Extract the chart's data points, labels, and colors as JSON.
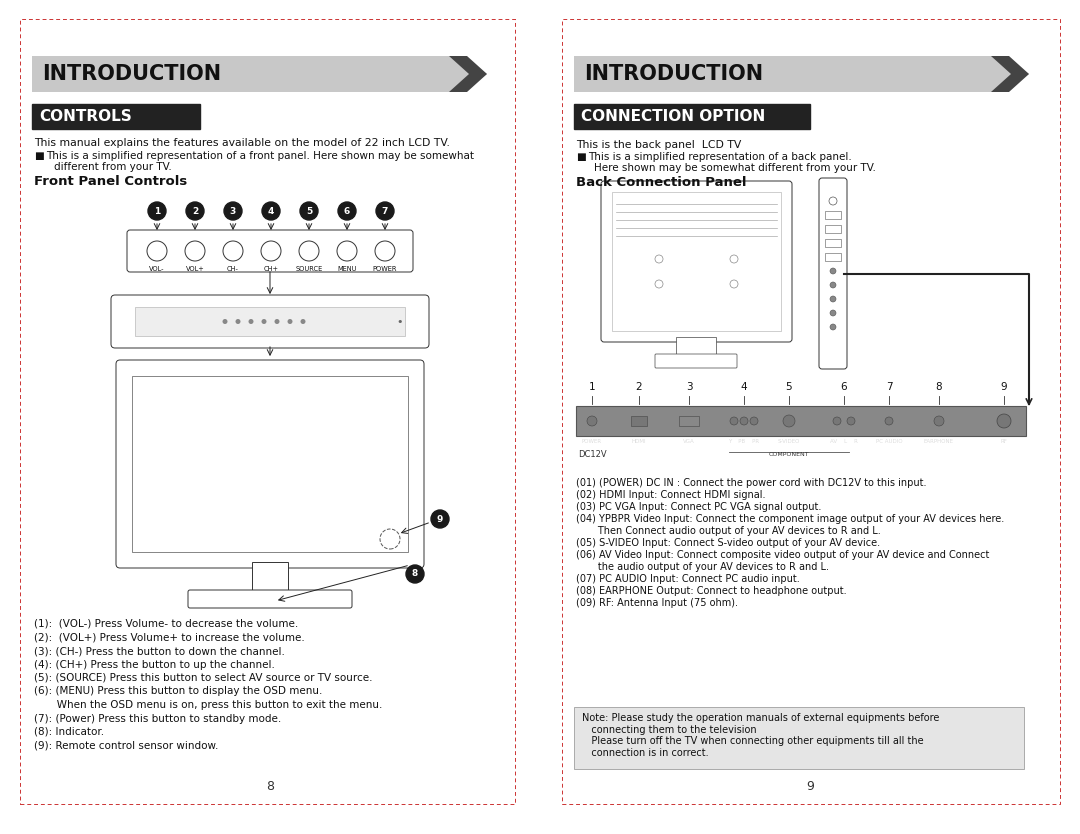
{
  "bg_color": "#ffffff",
  "left_page": {
    "intro_title": "INTRODUCTION",
    "section_title": "CONTROLS",
    "intro_text": "This manual explains the features available on the model of 22 inch LCD TV.",
    "bullet1": "This is a simplified representation of a front panel. Here shown may be somewhat",
    "bullet2": "different from your TV.",
    "front_panel_label": "Front Panel Controls",
    "button_labels": [
      "VOL-",
      "VOL+",
      "CH-",
      "CH+",
      "SOURCE",
      "MENU",
      "POWER"
    ],
    "button_numbers": [
      "1",
      "2",
      "3",
      "4",
      "5",
      "6",
      "7"
    ],
    "controls_list": [
      "(1):  (VOL-) Press Volume- to decrease the volume.",
      "(2):  (VOL+) Press Volume+ to increase the volume.",
      "(3): (CH-) Press the button to down the channel.",
      "(4): (CH+) Press the button to up the channel.",
      "(5): (SOURCE) Press this button to select AV source or TV source.",
      "(6): (MENU) Press this button to display the OSD menu.",
      "       When the OSD menu is on, press this button to exit the menu.",
      "(7): (Power) Press this button to standby mode.",
      "(8): Indicator.",
      "(9): Remote control sensor window."
    ],
    "page_num": "8"
  },
  "right_page": {
    "intro_title": "INTRODUCTION",
    "section_title": "CONNECTION OPTION",
    "intro_text": "This is the back panel  LCD TV",
    "bullet1": "This is a simplified representation of a back panel.",
    "bullet2": "Here shown may be somewhat different from your TV.",
    "back_panel_label": "Back Connection Panel",
    "port_numbers": [
      "1",
      "2",
      "3",
      "4",
      "5",
      "6",
      "7",
      "8",
      "9"
    ],
    "port_labels_bottom": [
      "POWER",
      "HDMI",
      "VGA",
      "Y",
      "PB",
      "PR",
      "S-VIDEO",
      "AV",
      "L",
      "R",
      "PC AUDIO",
      "EARPHONE",
      "RF"
    ],
    "dc_label": "DC12V",
    "component_label": "COMPONENT",
    "connections": [
      "(01) (POWER) DC IN : Connect the power cord with DC12V to this input.",
      "(02) HDMI Input: Connect HDMI signal.",
      "(03) PC VGA Input: Connect PC VGA signal output.",
      "(04) YPBPR Video Input: Connect the component image output of your AV devices here.",
      "       Then Connect audio output of your AV devices to R and L.",
      "(05) S-VIDEO Input: Connect S-video output of your AV device.",
      "(06) AV Video Input: Connect composite video output of your AV device and Connect",
      "       the audio output of your AV devices to R and L.",
      "(07) PC AUDIO Input: Connect PC audio input.",
      "(08) EARPHONE Output: Connect to headphone output.",
      "(09) RF: Antenna Input (75 ohm)."
    ],
    "note_text": "Note: Please study the operation manuals of external equipments before\n   connecting them to the television\n   Please turn off the TV when connecting other equipments till all the\n   connection is in correct.",
    "page_num": "9"
  }
}
